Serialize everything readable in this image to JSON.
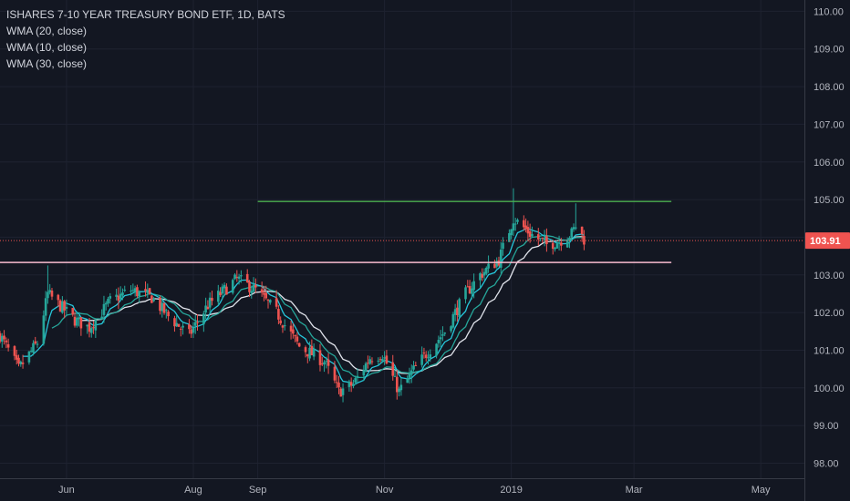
{
  "legend": {
    "title": "ISHARES 7-10 YEAR TREASURY BOND ETF, 1D, BATS",
    "studies": [
      "WMA (20, close)",
      "WMA (10, close)",
      "WMA (30, close)"
    ]
  },
  "colors": {
    "background": "#131722",
    "grid": "#1e2230",
    "axis_text": "#b2b5be",
    "axis_border": "#363a45",
    "up": "#26a69a",
    "down": "#ef5350",
    "wma10": "#26c6da",
    "wma20": "#26a69a",
    "wma30": "#e0e3eb",
    "resistance_line": "#4caf50",
    "support_line": "#f8bbd0",
    "last_price_line": "#ef5350",
    "last_price_tag": "#ef5350"
  },
  "chart_data": {
    "type": "candlestick",
    "title": "ISHARES 7-10 YEAR TREASURY BOND ETF, 1D, BATS",
    "ylim": [
      97.6,
      110.3
    ],
    "y_ticks": [
      "98.00",
      "99.00",
      "100.00",
      "101.00",
      "102.00",
      "103.00",
      "104.00",
      "105.00",
      "106.00",
      "107.00",
      "108.00",
      "109.00",
      "110.00"
    ],
    "x_ticks": [
      {
        "label": "Jun",
        "date": "2018-06-01"
      },
      {
        "label": "Aug",
        "date": "2018-08-01"
      },
      {
        "label": "Sep",
        "date": "2018-09-01"
      },
      {
        "label": "Nov",
        "date": "2018-11-01"
      },
      {
        "label": "2019",
        "date": "2019-01-01"
      },
      {
        "label": "Mar",
        "date": "2019-03-01"
      },
      {
        "label": "May",
        "date": "2019-05-01"
      }
    ],
    "x_range": [
      "2018-04-30",
      "2019-05-22"
    ],
    "last_price": "103.91",
    "horizontal_lines": [
      {
        "name": "resistance",
        "value": 104.95,
        "from": "2018-09-01",
        "to": "2019-03-19"
      },
      {
        "name": "support",
        "value": 103.33,
        "from": "2018-04-30",
        "to": "2019-03-19"
      },
      {
        "name": "last-price",
        "value": 103.91,
        "style": "dotted"
      }
    ],
    "waypoints": [
      [
        "2018-04-30",
        101.4
      ],
      [
        "2018-05-09",
        100.5
      ],
      [
        "2018-05-18",
        101.2
      ],
      [
        "2018-05-23",
        102.5
      ],
      [
        "2018-06-05",
        101.8
      ],
      [
        "2018-06-12",
        101.6
      ],
      [
        "2018-06-22",
        102.3
      ],
      [
        "2018-07-02",
        102.6
      ],
      [
        "2018-07-12",
        102.4
      ],
      [
        "2018-07-20",
        101.9
      ],
      [
        "2018-07-30",
        101.4
      ],
      [
        "2018-08-08",
        102.2
      ],
      [
        "2018-08-22",
        102.9
      ],
      [
        "2018-08-31",
        102.6
      ],
      [
        "2018-09-10",
        102.0
      ],
      [
        "2018-09-21",
        101.1
      ],
      [
        "2018-10-03",
        100.7
      ],
      [
        "2018-10-10",
        99.9
      ],
      [
        "2018-10-17",
        100.1
      ],
      [
        "2018-10-25",
        100.8
      ],
      [
        "2018-10-31",
        100.9
      ],
      [
        "2018-11-08",
        99.9
      ],
      [
        "2018-11-14",
        100.4
      ],
      [
        "2018-11-21",
        100.9
      ],
      [
        "2018-11-30",
        101.5
      ],
      [
        "2018-12-10",
        102.5
      ],
      [
        "2018-12-17",
        103.0
      ],
      [
        "2018-12-26",
        103.4
      ],
      [
        "2019-01-02",
        104.5
      ],
      [
        "2019-01-10",
        104.1
      ],
      [
        "2019-01-18",
        103.8
      ],
      [
        "2019-01-24",
        103.9
      ],
      [
        "2019-01-30",
        104.1
      ],
      [
        "2019-02-01",
        104.3
      ],
      [
        "2019-02-05",
        103.95
      ]
    ]
  }
}
